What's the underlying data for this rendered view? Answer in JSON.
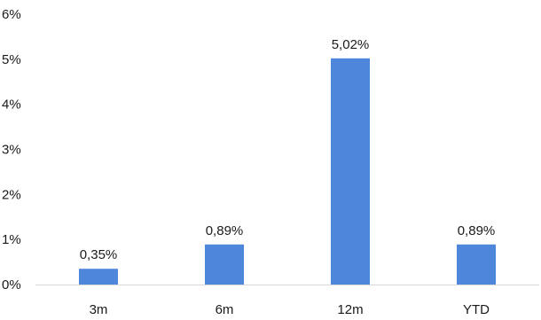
{
  "chart_data": {
    "type": "bar",
    "categories": [
      "3m",
      "6m",
      "12m",
      "YTD"
    ],
    "values": [
      0.35,
      0.89,
      5.02,
      0.89
    ],
    "data_labels": [
      "0,35%",
      "0,89%",
      "5,02%",
      "0,89%"
    ],
    "y_ticks": [
      {
        "value": 0,
        "label": "0%"
      },
      {
        "value": 1,
        "label": "1%"
      },
      {
        "value": 2,
        "label": "2%"
      },
      {
        "value": 3,
        "label": "3%"
      },
      {
        "value": 4,
        "label": "4%"
      },
      {
        "value": 5,
        "label": "5%"
      },
      {
        "value": 6,
        "label": "6%"
      }
    ],
    "ylim": [
      0,
      6
    ],
    "grid": false,
    "legend": "none",
    "bar_color": "#4E86DB",
    "axis_color": "#D9D9D9"
  }
}
